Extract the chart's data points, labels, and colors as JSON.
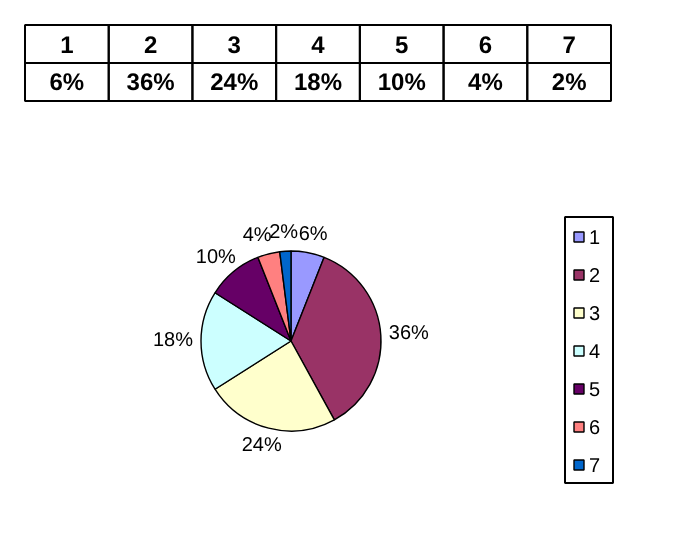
{
  "chart_data": {
    "type": "pie",
    "categories": [
      "1",
      "2",
      "3",
      "4",
      "5",
      "6",
      "7"
    ],
    "values": [
      6,
      36,
      24,
      18,
      10,
      4,
      2
    ],
    "colors": [
      "#9999ff",
      "#993366",
      "#ffffcc",
      "#ccffff",
      "#660066",
      "#ff8080",
      "#0066cc"
    ],
    "value_labels": [
      "6%",
      "36%",
      "24%",
      "18%",
      "10%",
      "4%",
      "2%"
    ],
    "legend": "right"
  }
}
